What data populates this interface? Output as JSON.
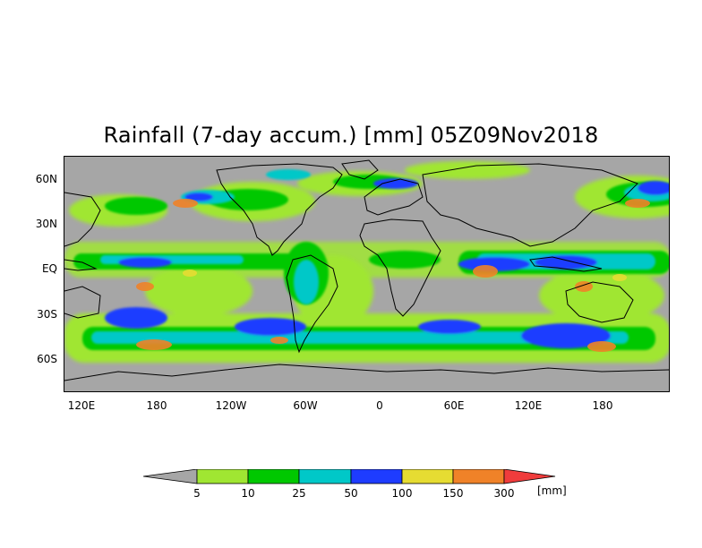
{
  "title": "Rainfall (7-day accum.) [mm] 05Z09Nov2018",
  "lat_ticks": [
    "60N",
    "30N",
    "EQ",
    "30S",
    "60S"
  ],
  "lon_ticks": [
    "120E",
    "180",
    "120W",
    "60W",
    "0",
    "60E",
    "120E",
    "180"
  ],
  "colorbar": {
    "labels": [
      "5",
      "10",
      "25",
      "50",
      "100",
      "150",
      "300"
    ],
    "unit": "[mm]",
    "colors": [
      "#a6a6a6",
      "#a0e632",
      "#00c800",
      "#00c8c8",
      "#1e3cff",
      "#e6dc32",
      "#f08228",
      "#f03c3c"
    ]
  }
}
